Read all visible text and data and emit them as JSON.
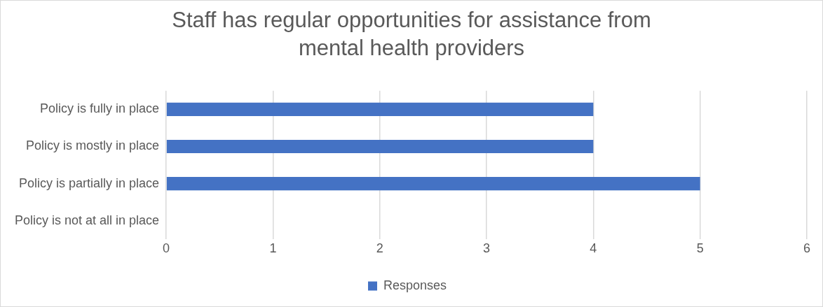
{
  "chart_data": {
    "type": "bar",
    "orientation": "horizontal",
    "title": "Staff has regular opportunities for assistance from mental health providers",
    "categories": [
      "Policy is fully in place",
      "Policy is mostly in place",
      "Policy is partially in place",
      "Policy is not at all in place"
    ],
    "series": [
      {
        "name": "Responses",
        "color": "#4472c4",
        "values": [
          4,
          4,
          5,
          0
        ]
      }
    ],
    "xlim": [
      0,
      6
    ],
    "xticks": [
      0,
      1,
      2,
      3,
      4,
      5,
      6
    ],
    "grid": "x",
    "legend": "bottom"
  }
}
